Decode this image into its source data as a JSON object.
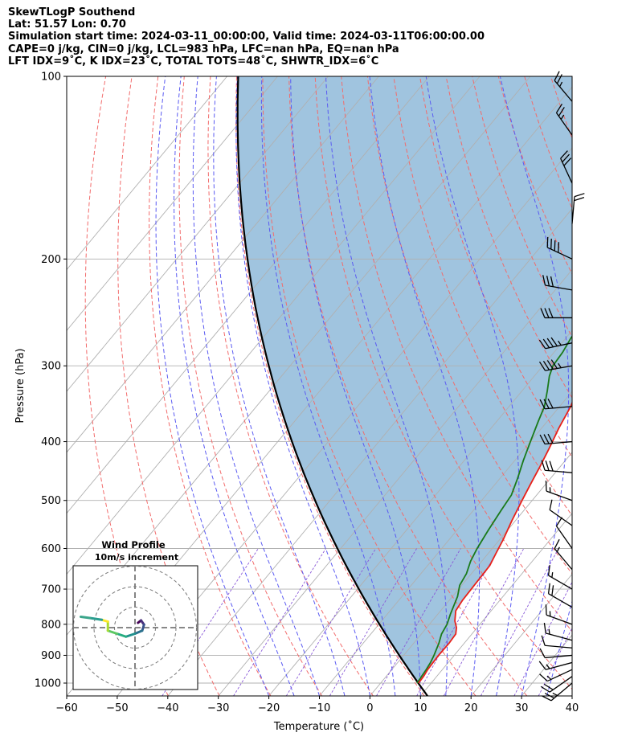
{
  "header": {
    "line1": "SkewTLogP Southend",
    "line2": "Lat: 51.57   Lon: 0.70",
    "line3": "Simulation start time: 2024-03-11_00:00:00, Valid time: 2024-03-11T06:00:00.00",
    "line4": "CAPE=0 j/kg, CIN=0 j/kg, LCL=983 hPa, LFC=nan hPa, EQ=nan hPa",
    "line5": "LFT IDX=9˚C, K IDX=23˚C, TOTAL TOTS=48˚C, SHWTR_IDX=6˚C"
  },
  "chart_data": {
    "type": "line",
    "subtype": "skew-t log-p",
    "xlabel": "Temperature (˚C)",
    "ylabel": "Pressure (hPa)",
    "xlim": [
      -60,
      40
    ],
    "ylim": [
      1050,
      100
    ],
    "y_scale": "log",
    "grid": true,
    "x_ticks": [
      "−60",
      "−50",
      "−40",
      "−30",
      "−20",
      "−10",
      "0",
      "10",
      "20",
      "30",
      "40"
    ],
    "y_ticks": [
      {
        "p": 100,
        "label": "100"
      },
      {
        "p": 200,
        "label": "200"
      },
      {
        "p": 300,
        "label": "300"
      },
      {
        "p": 400,
        "label": "400"
      },
      {
        "p": 500,
        "label": "500"
      },
      {
        "p": 600,
        "label": "600"
      },
      {
        "p": 700,
        "label": "700"
      },
      {
        "p": 800,
        "label": "800"
      },
      {
        "p": 900,
        "label": "900"
      },
      {
        "p": 1000,
        "label": "1000"
      }
    ],
    "colors": {
      "temperature": "#e8211a",
      "dewpoint": "#1a7a1a",
      "parcel": "#000000",
      "shade": "#a0c4df",
      "isotherm": "#b0b0b0",
      "dry_adiabat": "#f26b6b",
      "moist_adiabat": "#5a5af2",
      "mixing_ratio": "#8a5ad8"
    },
    "series": [
      {
        "key": "temperature",
        "points": [
          [
            1000,
            7.5
          ],
          [
            975,
            7.4
          ],
          [
            950,
            7.1
          ],
          [
            925,
            7.0
          ],
          [
            900,
            6.9
          ],
          [
            860,
            7.0
          ],
          [
            830,
            6.8
          ],
          [
            810,
            5.9
          ],
          [
            790,
            4.5
          ],
          [
            760,
            3.0
          ],
          [
            730,
            2.6
          ],
          [
            700,
            2.5
          ],
          [
            670,
            2.4
          ],
          [
            640,
            2.3
          ],
          [
            610,
            1.5
          ],
          [
            580,
            0.7
          ],
          [
            540,
            -0.7
          ],
          [
            500,
            -2.0
          ],
          [
            470,
            -3.0
          ],
          [
            440,
            -4.0
          ],
          [
            410,
            -5.2
          ],
          [
            380,
            -6.6
          ],
          [
            350,
            -7.8
          ],
          [
            325,
            -9.5
          ],
          [
            300,
            -11.5
          ],
          [
            280,
            -13.1
          ],
          [
            262,
            -14.7
          ],
          [
            248,
            -15.7
          ],
          [
            240,
            -15.2
          ],
          [
            230,
            -13.6
          ],
          [
            222,
            -12.5
          ],
          [
            215,
            -12.1
          ],
          [
            207,
            -11.8
          ],
          [
            200,
            -11.1
          ],
          [
            186,
            -7.2
          ],
          [
            170,
            -3.5
          ],
          [
            155,
            -0.3
          ],
          [
            140,
            2.3
          ],
          [
            125,
            5.3
          ],
          [
            112,
            7.9
          ],
          [
            100,
            10.9
          ]
        ]
      },
      {
        "key": "dewpoint",
        "points": [
          [
            1000,
            7.2
          ],
          [
            975,
            7.0
          ],
          [
            950,
            6.8
          ],
          [
            925,
            6.5
          ],
          [
            900,
            6.0
          ],
          [
            860,
            5.0
          ],
          [
            830,
            4.0
          ],
          [
            800,
            3.5
          ],
          [
            770,
            2.5
          ],
          [
            720,
            1.0
          ],
          [
            690,
            -0.4
          ],
          [
            660,
            -1.0
          ],
          [
            630,
            -2.2
          ],
          [
            600,
            -3.0
          ],
          [
            560,
            -3.8
          ],
          [
            520,
            -4.5
          ],
          [
            490,
            -5.0
          ],
          [
            460,
            -6.5
          ],
          [
            430,
            -8.3
          ],
          [
            400,
            -10.0
          ],
          [
            370,
            -11.8
          ],
          [
            350,
            -13.0
          ],
          [
            330,
            -15.0
          ],
          [
            312,
            -17.0
          ],
          [
            300,
            -18.0
          ],
          [
            285,
            -18.3
          ],
          [
            270,
            -19.0
          ],
          [
            258,
            -19.2
          ],
          [
            245,
            -18.8
          ],
          [
            232,
            -17.5
          ],
          [
            222,
            -16.1
          ],
          [
            213,
            -15.2
          ],
          [
            200,
            -14.9
          ],
          [
            190,
            -17.2
          ],
          [
            186,
            -16.6
          ],
          [
            170,
            -12.7
          ],
          [
            155,
            -8.8
          ],
          [
            140,
            -5.2
          ],
          [
            125,
            -2.7
          ],
          [
            112,
            -0.4
          ],
          [
            100,
            1.5
          ]
        ]
      }
    ],
    "inset": {
      "title": "Wind Profile",
      "subtitle": "10m/s increment",
      "hodograph_uv": [
        [
          0.5,
          0.8
        ],
        [
          1.0,
          1.2
        ],
        [
          1.5,
          0.5
        ],
        [
          1.2,
          -0.5
        ],
        [
          0,
          -1.0
        ],
        [
          -1.5,
          -1.5
        ],
        [
          -3,
          -1.0
        ],
        [
          -4.5,
          -0.5
        ],
        [
          -4.5,
          1.0
        ],
        [
          -5.5,
          1.3
        ],
        [
          -7.5,
          1.6
        ],
        [
          -9.0,
          1.8
        ]
      ]
    },
    "wind_barbs": [
      {
        "p": 1000,
        "dir": 230,
        "spd": 25
      },
      {
        "p": 975,
        "dir": 235,
        "spd": 20
      },
      {
        "p": 950,
        "dir": 245,
        "spd": 15
      },
      {
        "p": 925,
        "dir": 255,
        "spd": 15
      },
      {
        "p": 900,
        "dir": 265,
        "spd": 10
      },
      {
        "p": 875,
        "dir": 275,
        "spd": 10
      },
      {
        "p": 850,
        "dir": 285,
        "spd": 15
      },
      {
        "p": 800,
        "dir": 290,
        "spd": 15
      },
      {
        "p": 750,
        "dir": 300,
        "spd": 20
      },
      {
        "p": 700,
        "dir": 300,
        "spd": 15
      },
      {
        "p": 650,
        "dir": 320,
        "spd": 15
      },
      {
        "p": 600,
        "dir": 325,
        "spd": 10
      },
      {
        "p": 550,
        "dir": 305,
        "spd": 10
      },
      {
        "p": 500,
        "dir": 290,
        "spd": 15
      },
      {
        "p": 450,
        "dir": 275,
        "spd": 30
      },
      {
        "p": 400,
        "dir": 265,
        "spd": 30
      },
      {
        "p": 350,
        "dir": 265,
        "spd": 30
      },
      {
        "p": 300,
        "dir": 260,
        "spd": 45
      },
      {
        "p": 275,
        "dir": 258,
        "spd": 45
      },
      {
        "p": 250,
        "dir": 270,
        "spd": 30
      },
      {
        "p": 225,
        "dir": 280,
        "spd": 30
      },
      {
        "p": 200,
        "dir": 295,
        "spd": 40
      },
      {
        "p": 175,
        "dir": 5,
        "spd": 20
      },
      {
        "p": 150,
        "dir": 335,
        "spd": 30
      },
      {
        "p": 125,
        "dir": 325,
        "spd": 25
      },
      {
        "p": 110,
        "dir": 320,
        "spd": 25
      }
    ]
  }
}
